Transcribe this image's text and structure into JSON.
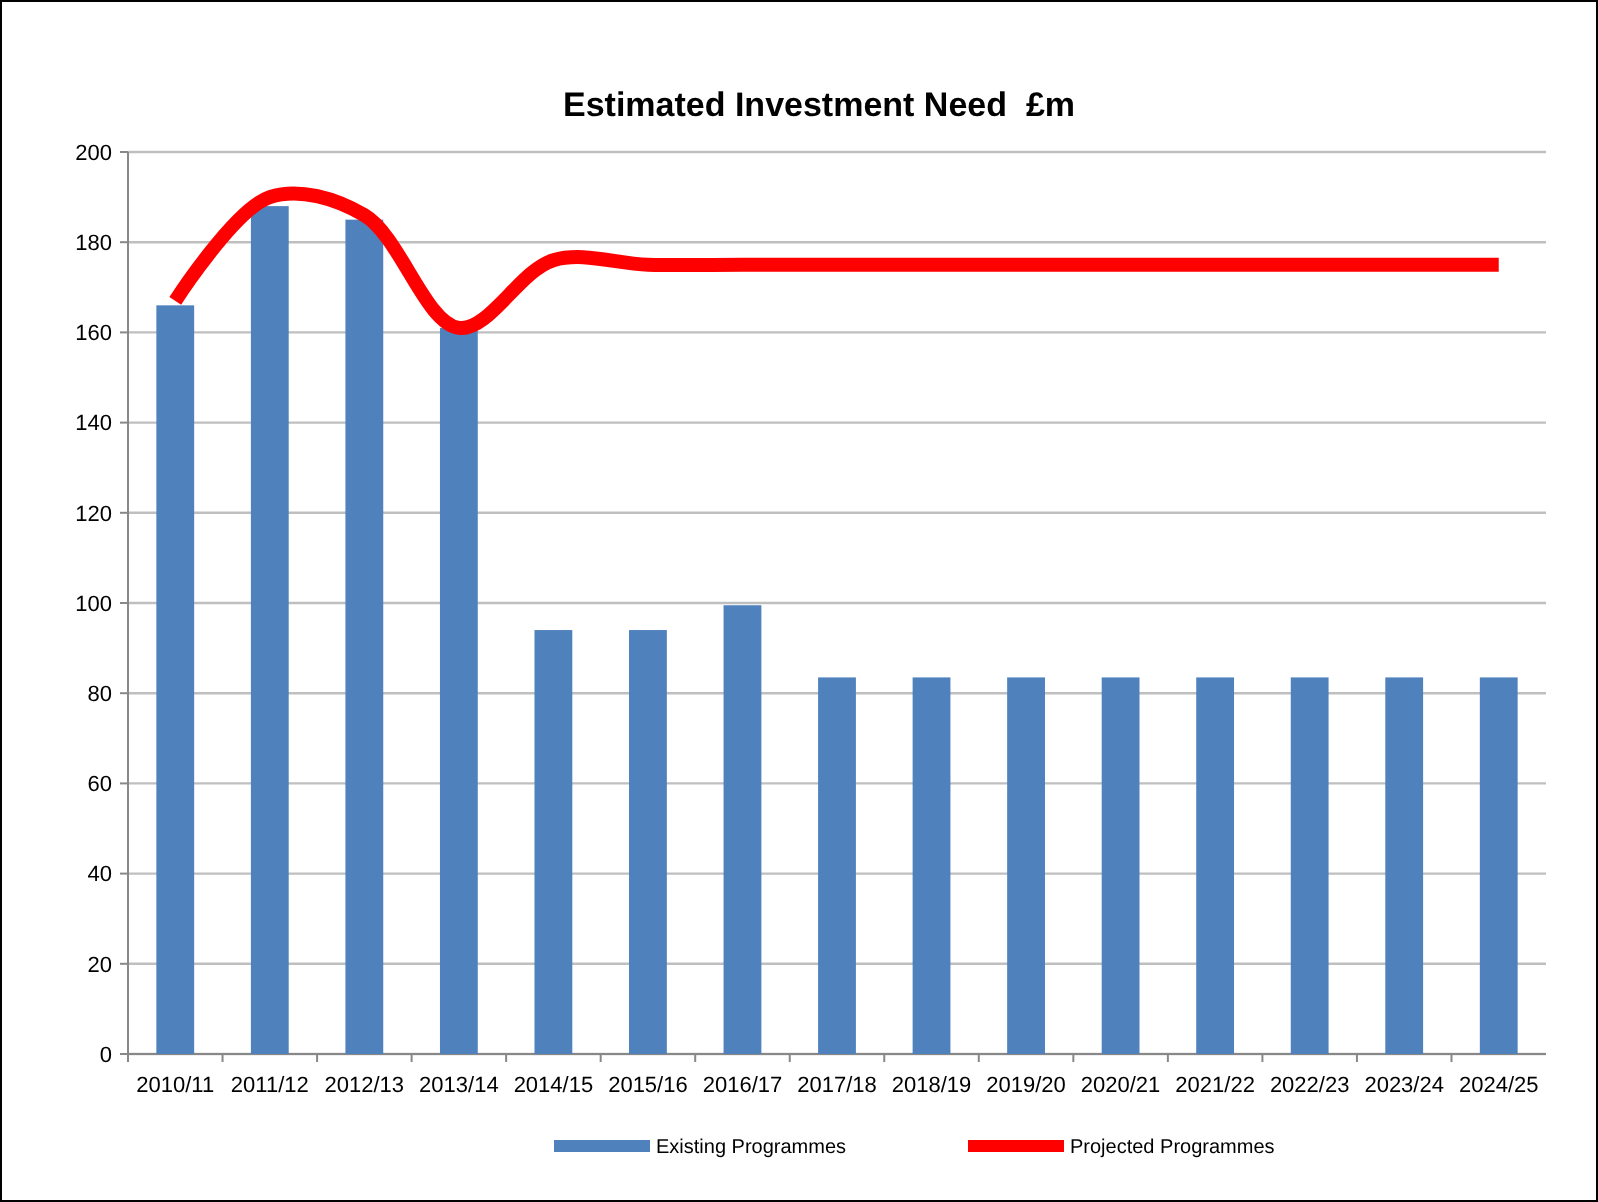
{
  "chart_data": {
    "type": "bar",
    "title": "Estimated Investment Need  £m",
    "categories": [
      "2010/11",
      "2011/12",
      "2012/13",
      "2013/14",
      "2014/15",
      "2015/16",
      "2016/17",
      "2017/18",
      "2018/19",
      "2019/20",
      "2020/21",
      "2021/22",
      "2022/23",
      "2023/24",
      "2024/25"
    ],
    "series": [
      {
        "name": "Existing Programmes",
        "color": "#4f81bd",
        "values": [
          166,
          188,
          185,
          161,
          94,
          94,
          99.5,
          83.5,
          83.5,
          83.5,
          83.5,
          83.5,
          83.5,
          83.5,
          83.5
        ]
      },
      {
        "name": "Projected Programmes",
        "type": "line",
        "color": "#ff0000",
        "values": [
          167,
          190,
          186,
          161,
          176,
          175,
          175,
          175,
          175,
          175,
          175,
          175,
          175,
          175,
          175
        ]
      }
    ],
    "ylim": [
      0,
      200
    ],
    "yticks": [
      0,
      20,
      40,
      60,
      80,
      100,
      120,
      140,
      160,
      180,
      200
    ],
    "grid": "y",
    "legend": "bottom",
    "marker": "none"
  }
}
